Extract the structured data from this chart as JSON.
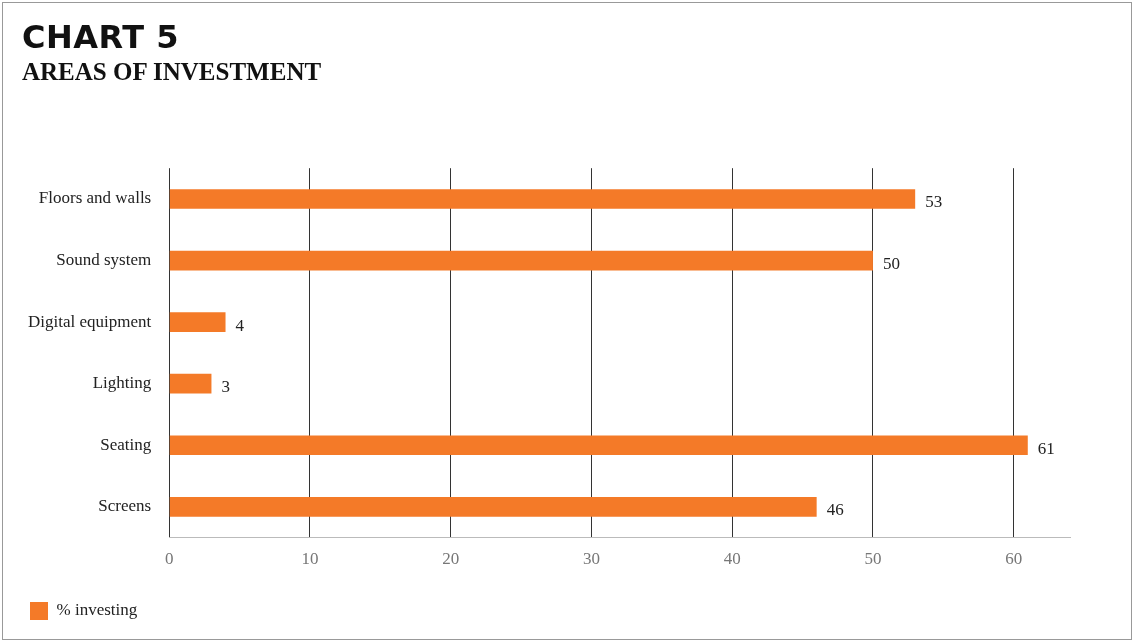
{
  "chart_data": {
    "type": "bar",
    "title": "CHART 5",
    "subtitle": "AREAS OF INVESTMENT",
    "orientation": "horizontal",
    "categories": [
      "Floors and walls",
      "Sound system",
      "Digital equipment",
      "Lighting",
      "Seating",
      "Screens"
    ],
    "series": [
      {
        "name": "% investing",
        "color": "#f47a28",
        "values": [
          53,
          50,
          4,
          3,
          61,
          46
        ]
      }
    ],
    "xlim": [
      0,
      64
    ],
    "xticks": [
      0,
      10,
      20,
      30,
      40,
      50,
      60
    ],
    "grid": "x",
    "legend": "bottom left",
    "data_labels": true
  }
}
